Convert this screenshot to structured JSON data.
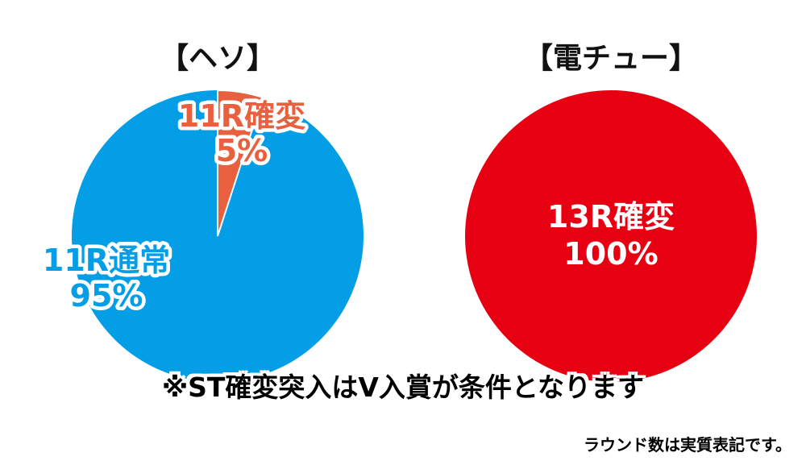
{
  "colors": {
    "heso_normal": "#049ee6",
    "heso_kakuhen": "#e9603f",
    "denchu_kakuhen": "#e60012",
    "label_heso_normal": "#049ee6",
    "label_heso_kakuhen": "#e9603f",
    "label_denchu": "#ffffff"
  },
  "chart_data": [
    {
      "type": "pie",
      "title": "【ヘソ】",
      "slices": [
        {
          "name": "11R確変",
          "percent_label": "5%",
          "value": 5,
          "color": "#e9603f"
        },
        {
          "name": "11R通常",
          "percent_label": "95%",
          "value": 95,
          "color": "#049ee6"
        }
      ]
    },
    {
      "type": "pie",
      "title": "【電チュー】",
      "slices": [
        {
          "name": "13R確変",
          "percent_label": "100%",
          "value": 100,
          "color": "#e60012"
        }
      ]
    }
  ],
  "note": "※ST確変突入はV入賞が条件となります",
  "footnote": "ラウンド数は実質表記です。"
}
